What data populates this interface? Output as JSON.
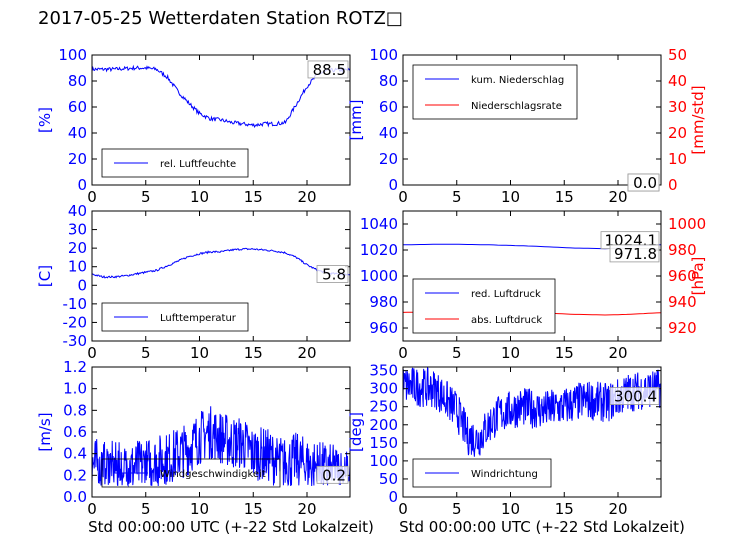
{
  "title": "2017-05-25 Wetterdaten Station ROTZ□",
  "colors": {
    "left_axis": "#0000ff",
    "right_axis": "#ff0000",
    "frame": "#000000"
  },
  "chart_data": [
    {
      "id": "humidity",
      "type": "line",
      "ylabel": "[%]",
      "ylim": [
        0,
        100
      ],
      "yticks": [
        0,
        20,
        40,
        60,
        80,
        100
      ],
      "xlim": [
        0,
        24
      ],
      "xticks": [
        0,
        5,
        10,
        15,
        20
      ],
      "legend": [
        "rel. Luftfeuchte"
      ],
      "legend_position": "lower-left",
      "last_value_label": "88.5",
      "series": [
        {
          "name": "rel. Luftfeuchte",
          "color": "#0000ff",
          "noise": 1.5,
          "points": [
            [
              0,
              89
            ],
            [
              2,
              89
            ],
            [
              4,
              90
            ],
            [
              5,
              90
            ],
            [
              6,
              89
            ],
            [
              7,
              83
            ],
            [
              8,
              72
            ],
            [
              9,
              63
            ],
            [
              10,
              55
            ],
            [
              11,
              51
            ],
            [
              12,
              50
            ],
            [
              13,
              48
            ],
            [
              14,
              47
            ],
            [
              15,
              46
            ],
            [
              16,
              47
            ],
            [
              17,
              47
            ],
            [
              18,
              48
            ],
            [
              19,
              62
            ],
            [
              20,
              76
            ],
            [
              21,
              85
            ],
            [
              22,
              88
            ],
            [
              23,
              88.5
            ],
            [
              24,
              88.5
            ]
          ]
        }
      ]
    },
    {
      "id": "precipitation",
      "type": "line",
      "ylabel": "[mm]",
      "ylim": [
        0,
        100
      ],
      "yticks": [
        0,
        20,
        40,
        60,
        80,
        100
      ],
      "y2label": "[mm/std]",
      "y2lim": [
        0,
        50
      ],
      "y2ticks": [
        0,
        10,
        20,
        30,
        40,
        50
      ],
      "xlim": [
        0,
        24
      ],
      "xticks": [
        0,
        5,
        10,
        15,
        20
      ],
      "legend": [
        "kum. Niederschlag",
        "Niederschlagsrate"
      ],
      "legend_position": "upper-left",
      "last_value_label": "0.0",
      "last_value_label_2": "0.0",
      "series": [
        {
          "name": "kum. Niederschlag",
          "color": "#0000ff",
          "noise": 0,
          "points": [
            [
              0,
              0
            ],
            [
              24,
              0
            ]
          ]
        },
        {
          "name": "Niederschlagsrate",
          "color": "#ff0000",
          "noise": 0,
          "axis": "right",
          "points": [
            [
              0,
              0
            ],
            [
              24,
              0
            ]
          ]
        }
      ]
    },
    {
      "id": "temperature",
      "type": "line",
      "ylabel": "[C]",
      "ylim": [
        -30,
        40
      ],
      "yticks": [
        -30,
        -20,
        -10,
        0,
        10,
        20,
        30,
        40
      ],
      "xlim": [
        0,
        24
      ],
      "xticks": [
        0,
        5,
        10,
        15,
        20
      ],
      "legend": [
        "Lufttemperatur"
      ],
      "legend_position": "lower-left",
      "last_value_label": "5.8",
      "series": [
        {
          "name": "Lufttemperatur",
          "color": "#0000ff",
          "noise": 0.5,
          "points": [
            [
              0,
              6
            ],
            [
              1,
              4.5
            ],
            [
              2,
              4.5
            ],
            [
              3,
              5
            ],
            [
              4,
              6
            ],
            [
              5,
              7
            ],
            [
              6,
              8
            ],
            [
              7,
              10.5
            ],
            [
              8,
              13
            ],
            [
              9,
              15.5
            ],
            [
              10,
              17
            ],
            [
              11,
              18
            ],
            [
              12,
              18
            ],
            [
              13,
              19
            ],
            [
              14,
              19.5
            ],
            [
              15,
              19.5
            ],
            [
              16,
              19
            ],
            [
              17,
              18.5
            ],
            [
              18,
              17.5
            ],
            [
              19,
              15
            ],
            [
              20,
              11
            ],
            [
              21,
              8
            ],
            [
              22,
              6.5
            ],
            [
              23,
              6
            ],
            [
              24,
              5.8
            ]
          ]
        }
      ]
    },
    {
      "id": "pressure",
      "type": "line",
      "ylabel": "",
      "ylim": [
        950,
        1050
      ],
      "yticks": [
        960,
        980,
        1000,
        1020,
        1040
      ],
      "y2label": "[hPa]",
      "y2lim": [
        910,
        1010
      ],
      "y2ticks": [
        920,
        940,
        960,
        980,
        1000
      ],
      "xlim": [
        0,
        24
      ],
      "xticks": [
        0,
        5,
        10,
        15,
        20
      ],
      "legend": [
        "red. Luftdruck",
        "abs. Luftdruck"
      ],
      "legend_position": "lower-left",
      "last_value_label": "1024.1",
      "last_value_label_2": "971.8",
      "series": [
        {
          "name": "red. Luftdruck",
          "color": "#0000ff",
          "noise": 0,
          "points": [
            [
              0,
              1024
            ],
            [
              4,
              1024.5
            ],
            [
              8,
              1024
            ],
            [
              12,
              1023
            ],
            [
              16,
              1021.5
            ],
            [
              19,
              1021
            ],
            [
              21,
              1022.5
            ],
            [
              24,
              1024.1
            ]
          ]
        },
        {
          "name": "abs. Luftdruck",
          "color": "#ff0000",
          "noise": 0,
          "points": [
            [
              0,
              972
            ],
            [
              4,
              972.5
            ],
            [
              8,
              973
            ],
            [
              12,
              972
            ],
            [
              16,
              970.5
            ],
            [
              19,
              970
            ],
            [
              21,
              970.5
            ],
            [
              24,
              971.8
            ]
          ]
        }
      ]
    },
    {
      "id": "windspeed",
      "type": "line",
      "ylabel": "[m/s]",
      "ylim": [
        0,
        1.2
      ],
      "yticks": [
        0.0,
        0.2,
        0.4,
        0.6,
        0.8,
        1.0,
        1.2
      ],
      "xlim": [
        0,
        24
      ],
      "xticks": [
        0,
        5,
        10,
        15,
        20
      ],
      "xlabel": "Std 00:00:00 UTC (+-22 Std Lokalzeit)",
      "legend": [
        "Windgeschwindigkeit"
      ],
      "legend_position": "lower-left",
      "last_value_label": "0.2",
      "series": [
        {
          "name": "Windgeschwindigkeit",
          "color": "#0000ff",
          "noise": 0.25,
          "points": [
            [
              0,
              0.3
            ],
            [
              3,
              0.25
            ],
            [
              5,
              0.3
            ],
            [
              7,
              0.35
            ],
            [
              9,
              0.45
            ],
            [
              10,
              0.55
            ],
            [
              11,
              0.6
            ],
            [
              12,
              0.55
            ],
            [
              13,
              0.5
            ],
            [
              14,
              0.5
            ],
            [
              15,
              0.4
            ],
            [
              16,
              0.4
            ],
            [
              17,
              0.35
            ],
            [
              18,
              0.3
            ],
            [
              19,
              0.35
            ],
            [
              20,
              0.3
            ],
            [
              22,
              0.25
            ],
            [
              24,
              0.2
            ]
          ]
        }
      ]
    },
    {
      "id": "winddirection",
      "type": "line",
      "ylabel": "[deg]",
      "ylim": [
        0,
        360
      ],
      "yticks": [
        0,
        50,
        100,
        150,
        200,
        250,
        300,
        350
      ],
      "xlim": [
        0,
        24
      ],
      "xticks": [
        0,
        5,
        10,
        15,
        20
      ],
      "xlabel": "Std 00:00:00 UTC (+-22 Std Lokalzeit)",
      "legend": [
        "Windrichtung"
      ],
      "legend_position": "lower-left",
      "last_value_label": "300.4",
      "series": [
        {
          "name": "Windrichtung",
          "color": "#0000ff",
          "noise": 55,
          "points": [
            [
              0,
              310
            ],
            [
              3,
              300
            ],
            [
              5,
              240
            ],
            [
              6,
              170
            ],
            [
              7,
              160
            ],
            [
              8,
              200
            ],
            [
              9,
              230
            ],
            [
              11,
              250
            ],
            [
              13,
              240
            ],
            [
              15,
              250
            ],
            [
              17,
              270
            ],
            [
              19,
              260
            ],
            [
              21,
              290
            ],
            [
              23,
              300
            ],
            [
              24,
              300.4
            ]
          ]
        }
      ]
    }
  ]
}
